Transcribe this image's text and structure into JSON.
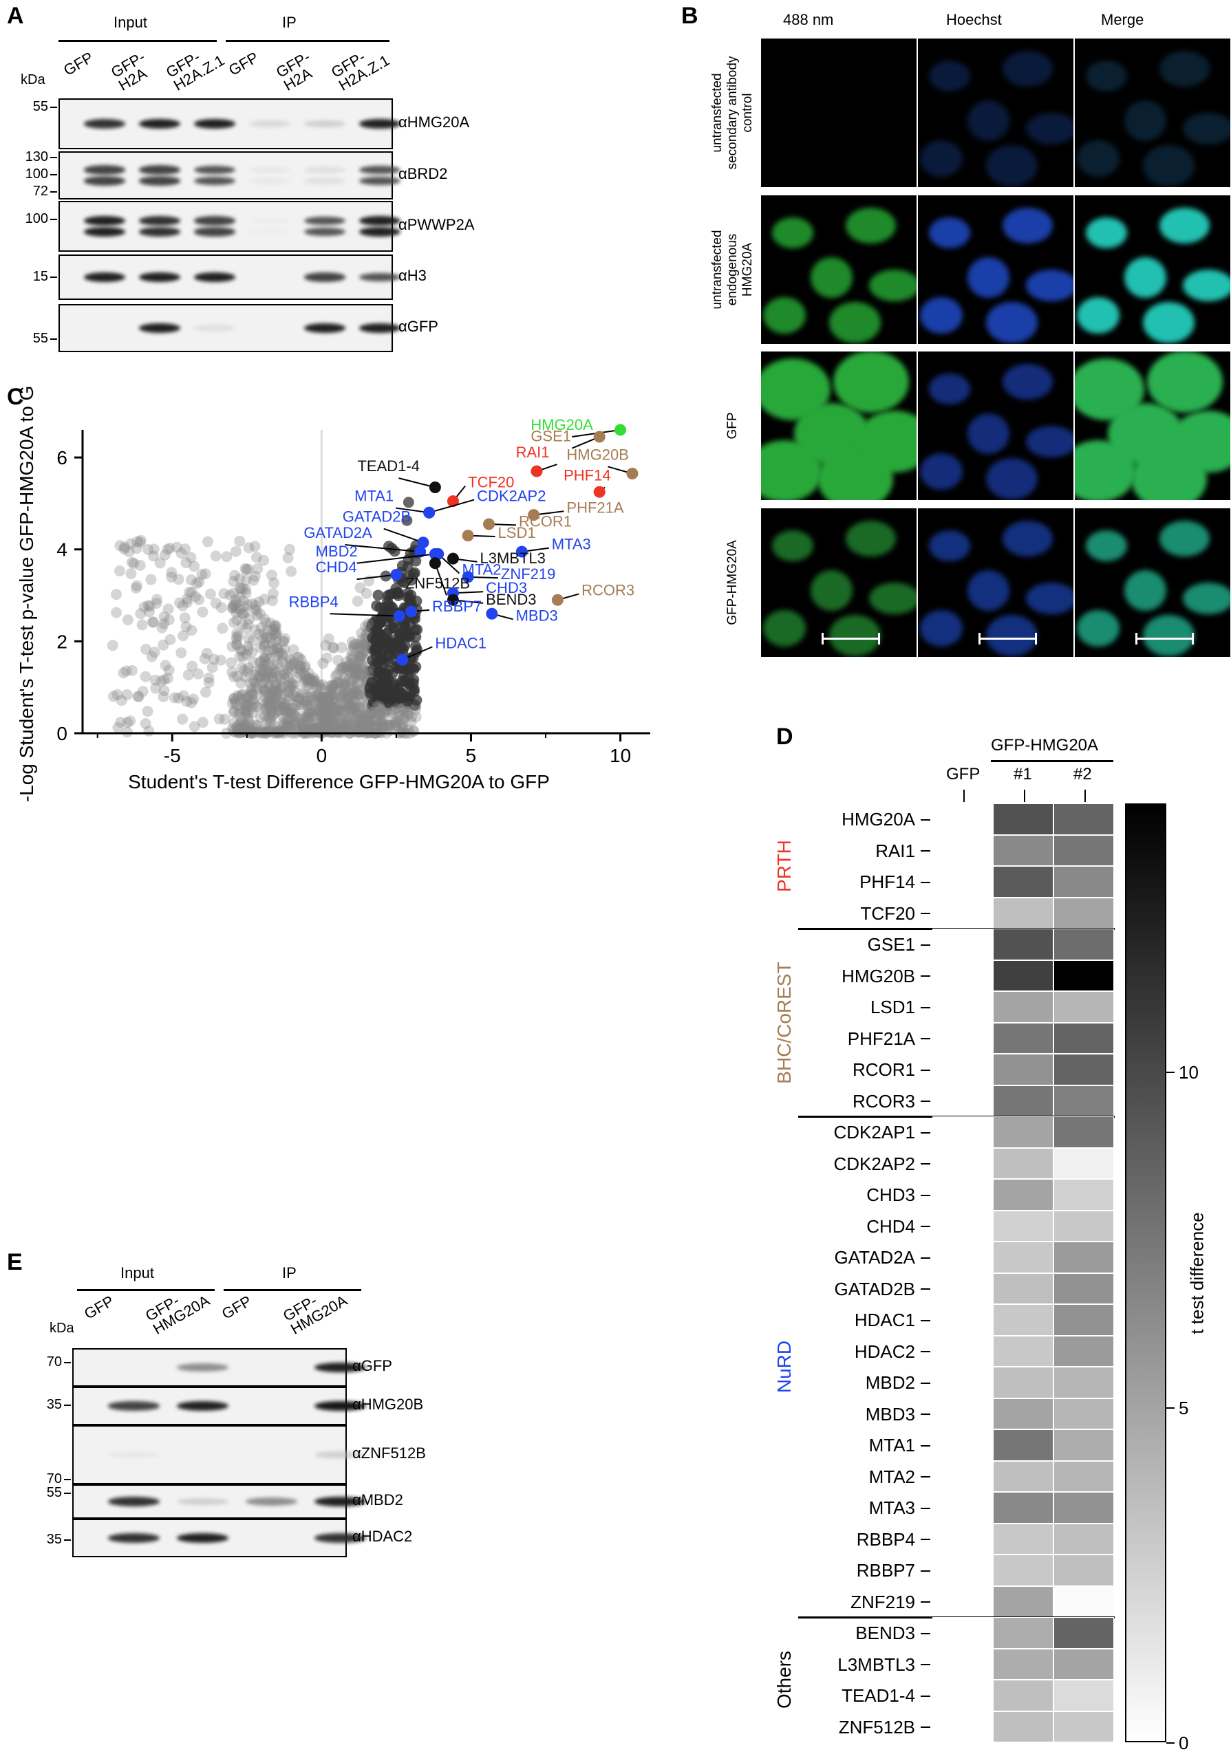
{
  "panelA": {
    "letter": "A",
    "kda": "kDa",
    "input": "Input",
    "ip": "IP",
    "lanes": [
      "GFP",
      "GFP-\nH2A",
      "GFP-\nH2A.Z.1",
      "GFP",
      "GFP-\nH2A",
      "GFP-\nH2A.Z.1"
    ],
    "blots": [
      {
        "label": "αHMG20A",
        "mw": [
          "55"
        ],
        "bands": [
          0.9,
          0.95,
          0.95,
          0.25,
          0.3,
          0.95
        ]
      },
      {
        "label": "αBRD2",
        "mw": [
          "130",
          "100",
          "72"
        ],
        "bands": [
          0.85,
          0.85,
          0.8,
          0.15,
          0.2,
          0.8
        ]
      },
      {
        "label": "αPWWP2A",
        "mw": [
          "100"
        ],
        "bands": [
          0.95,
          0.9,
          0.85,
          0.1,
          0.8,
          0.95
        ]
      },
      {
        "label": "αH3",
        "mw": [
          "15"
        ],
        "bands": [
          0.95,
          0.95,
          0.95,
          0.0,
          0.85,
          0.8
        ]
      },
      {
        "label": "αGFP",
        "mw": [
          "55"
        ],
        "bands": [
          0.0,
          0.95,
          0.2,
          0.0,
          0.95,
          0.95
        ]
      }
    ]
  },
  "panelB": {
    "letter": "B",
    "columns": [
      "488 nm",
      "Hoechst",
      "Merge"
    ],
    "rows": [
      "untransfected\nsecondary antibody\ncontrol",
      "untransfected\nendogenous\nHMG20A",
      "GFP",
      "GFP-HMG20A"
    ]
  },
  "panelC": {
    "letter": "C",
    "chart_data": {
      "type": "scatter",
      "xlabel": "Student's T-test Difference GFP-HMG20A to GFP",
      "ylabel": "-Log Student's T-test p-value GFP-HMG20A to GFP",
      "xlim": [
        -8,
        11
      ],
      "ylim": [
        0,
        6.6
      ],
      "xticks": [
        "-5",
        "0",
        "5",
        "10"
      ],
      "yticks": [
        "0",
        "2",
        "4",
        "6"
      ],
      "highlighted": [
        {
          "label": "HMG20A",
          "x": 10.0,
          "y": 6.6,
          "color": "#33dd33",
          "lx": 7.0,
          "ly": 6.6
        },
        {
          "label": "GSE1",
          "x": 9.3,
          "y": 6.45,
          "color": "#a67c52",
          "lx": 7.0,
          "ly": 6.35
        },
        {
          "label": "RAI1",
          "x": 7.2,
          "y": 5.7,
          "color": "#ee3322",
          "lx": 6.5,
          "ly": 6.0
        },
        {
          "label": "HMG20B",
          "x": 10.4,
          "y": 5.65,
          "color": "#a67c52",
          "lx": 8.2,
          "ly": 5.95
        },
        {
          "label": "TEAD1-4",
          "x": 3.8,
          "y": 5.35,
          "color": "#111111",
          "lx": 1.2,
          "ly": 5.7
        },
        {
          "label": "TCF20",
          "x": 4.4,
          "y": 5.05,
          "color": "#ee3322",
          "lx": 4.9,
          "ly": 5.35
        },
        {
          "label": "PHF14",
          "x": 9.3,
          "y": 5.25,
          "color": "#ee3322",
          "lx": 8.1,
          "ly": 5.5
        },
        {
          "label": "MTA1",
          "x": 3.6,
          "y": 4.8,
          "color": "#2244ee",
          "lx": 1.1,
          "ly": 5.05
        },
        {
          "label": "CDK2AP2",
          "x": 3.6,
          "y": 4.8,
          "color": "#2244ee",
          "lx": 5.2,
          "ly": 5.05
        },
        {
          "label": "PHF21A",
          "x": 7.1,
          "y": 4.75,
          "color": "#a67c52",
          "lx": 8.2,
          "ly": 4.8
        },
        {
          "label": "GATAD2B",
          "x": 3.4,
          "y": 4.15,
          "color": "#2244ee",
          "lx": 0.7,
          "ly": 4.6
        },
        {
          "label": "RCOR1",
          "x": 5.6,
          "y": 4.55,
          "color": "#a67c52",
          "lx": 6.6,
          "ly": 4.5
        },
        {
          "label": "LSD1",
          "x": 4.9,
          "y": 4.3,
          "color": "#a67c52",
          "lx": 5.9,
          "ly": 4.25
        },
        {
          "label": "GATAD2A",
          "x": 3.3,
          "y": 3.95,
          "color": "#2244ee",
          "lx": -0.6,
          "ly": 4.25
        },
        {
          "label": "MTA3",
          "x": 6.7,
          "y": 3.95,
          "color": "#2244ee",
          "lx": 7.7,
          "ly": 4.0
        },
        {
          "label": "MBD2",
          "x": 3.8,
          "y": 3.9,
          "color": "#2244ee",
          "lx": -0.2,
          "ly": 3.85
        },
        {
          "label": "L3MBTL3",
          "x": 4.4,
          "y": 3.8,
          "color": "#111111",
          "lx": 5.3,
          "ly": 3.7
        },
        {
          "label": "MTA2",
          "x": 3.9,
          "y": 3.9,
          "color": "#2244ee",
          "lx": 4.7,
          "ly": 3.45
        },
        {
          "label": "CHD4",
          "x": 2.5,
          "y": 3.45,
          "color": "#2244ee",
          "lx": -0.2,
          "ly": 3.5
        },
        {
          "label": "ZNF219",
          "x": 4.9,
          "y": 3.4,
          "color": "#2244ee",
          "lx": 6.0,
          "ly": 3.35
        },
        {
          "label": "ZNF512B",
          "x": 3.8,
          "y": 3.7,
          "color": "#111111",
          "lx": 2.8,
          "ly": 3.15
        },
        {
          "label": "CHD3",
          "x": 4.4,
          "y": 3.05,
          "color": "#2244ee",
          "lx": 5.5,
          "ly": 3.05
        },
        {
          "label": "RCOR3",
          "x": 7.9,
          "y": 2.9,
          "color": "#a67c52",
          "lx": 8.7,
          "ly": 3.0
        },
        {
          "label": "BEND3",
          "x": 4.4,
          "y": 2.9,
          "color": "#111111",
          "lx": 5.5,
          "ly": 2.8
        },
        {
          "label": "RBBP4",
          "x": 2.6,
          "y": 2.55,
          "color": "#2244ee",
          "lx": -1.1,
          "ly": 2.75
        },
        {
          "label": "RBBP7",
          "x": 3.0,
          "y": 2.65,
          "color": "#2244ee",
          "lx": 3.7,
          "ly": 2.65
        },
        {
          "label": "MBD3",
          "x": 5.7,
          "y": 2.6,
          "color": "#2244ee",
          "lx": 6.5,
          "ly": 2.45
        },
        {
          "label": "HDAC1",
          "x": 2.7,
          "y": 1.6,
          "color": "#2244ee",
          "lx": 3.8,
          "ly": 1.85
        }
      ]
    }
  },
  "panelD": {
    "letter": "D",
    "gfp": "GFP",
    "group": "GFP-HMG20A",
    "rep1": "#1",
    "rep2": "#2",
    "colorbar_label": "t test difference",
    "colorbar_ticks": [
      "0",
      "5",
      "10"
    ],
    "chart_data": {
      "type": "heatmap",
      "columns": [
        "GFP",
        "#1",
        "#2"
      ],
      "scale": [
        0,
        14
      ],
      "groups": [
        {
          "name": "PRTH",
          "color": "#ee3322",
          "rows": [
            {
              "name": "HMG20A",
              "values": [
                0,
                9.5,
                8.5
              ]
            },
            {
              "name": "RAI1",
              "values": [
                0,
                6.5,
                7.5
              ]
            },
            {
              "name": "PHF14",
              "values": [
                0,
                9.0,
                6.5
              ]
            },
            {
              "name": "TCF20",
              "values": [
                0,
                3.5,
                5.0
              ]
            }
          ]
        },
        {
          "name": "BHC/CoREST",
          "color": "#a67c52",
          "rows": [
            {
              "name": "GSE1",
              "values": [
                0,
                9.5,
                8.0
              ]
            },
            {
              "name": "HMG20B",
              "values": [
                0,
                10.5,
                14.0
              ]
            },
            {
              "name": "LSD1",
              "values": [
                0,
                5.0,
                4.0
              ]
            },
            {
              "name": "PHF21A",
              "values": [
                0,
                7.5,
                8.5
              ]
            },
            {
              "name": "RCOR1",
              "values": [
                0,
                6.0,
                8.5
              ]
            },
            {
              "name": "RCOR3",
              "values": [
                0,
                7.5,
                7.0
              ]
            }
          ]
        },
        {
          "name": "NuRD",
          "color": "#2244ee",
          "rows": [
            {
              "name": "CDK2AP1",
              "values": [
                0,
                5.0,
                7.5
              ]
            },
            {
              "name": "CDK2AP2",
              "values": [
                0,
                3.5,
                0.8
              ]
            },
            {
              "name": "CHD3",
              "values": [
                0,
                5.0,
                2.5
              ]
            },
            {
              "name": "CHD4",
              "values": [
                0,
                2.5,
                3.0
              ]
            },
            {
              "name": "GATAD2A",
              "values": [
                0,
                3.0,
                5.5
              ]
            },
            {
              "name": "GATAD2B",
              "values": [
                0,
                3.5,
                6.0
              ]
            },
            {
              "name": "HDAC1",
              "values": [
                0,
                3.0,
                6.0
              ]
            },
            {
              "name": "HDAC2",
              "values": [
                0,
                3.0,
                5.5
              ]
            },
            {
              "name": "MBD2",
              "values": [
                0,
                3.5,
                4.0
              ]
            },
            {
              "name": "MBD3",
              "values": [
                0,
                5.0,
                4.0
              ]
            },
            {
              "name": "MTA1",
              "values": [
                0,
                7.5,
                4.5
              ]
            },
            {
              "name": "MTA2",
              "values": [
                0,
                3.5,
                4.0
              ]
            },
            {
              "name": "MTA3",
              "values": [
                0,
                6.5,
                6.0
              ]
            },
            {
              "name": "RBBP4",
              "values": [
                0,
                3.0,
                3.5
              ]
            },
            {
              "name": "RBBP7",
              "values": [
                0,
                3.0,
                3.5
              ]
            },
            {
              "name": "ZNF219",
              "values": [
                0,
                5.0,
                0.2
              ]
            }
          ]
        },
        {
          "name": "Others",
          "color": "#000000",
          "rows": [
            {
              "name": "BEND3",
              "values": [
                0,
                4.5,
                8.5
              ]
            },
            {
              "name": "L3MBTL3",
              "values": [
                0,
                4.5,
                5.0
              ]
            },
            {
              "name": "TEAD1-4",
              "values": [
                0,
                3.5,
                2.0
              ]
            },
            {
              "name": "ZNF512B",
              "values": [
                0,
                3.5,
                3.0
              ]
            }
          ]
        }
      ]
    }
  },
  "panelE": {
    "letter": "E",
    "kda": "kDa",
    "input": "Input",
    "ip": "IP",
    "lanes": [
      "GFP",
      "GFP-\nHMG20A",
      "GFP",
      "GFP-\nHMG20A"
    ],
    "blots": [
      {
        "label": "αGFP",
        "mw": [
          "70"
        ],
        "bands": [
          0.0,
          0.6,
          0.0,
          0.95
        ]
      },
      {
        "label": "αHMG20B",
        "mw": [
          "35"
        ],
        "bands": [
          0.85,
          0.95,
          0.0,
          0.98
        ]
      },
      {
        "label": "αZNF512B",
        "mw": [
          "70"
        ],
        "bands": [
          0.15,
          0.05,
          0.0,
          0.3
        ]
      },
      {
        "label": "αMBD2",
        "mw": [
          "55"
        ],
        "bands": [
          0.9,
          0.3,
          0.6,
          0.95
        ]
      },
      {
        "label": "αHDAC2",
        "mw": [
          "35"
        ],
        "bands": [
          0.9,
          0.95,
          0.0,
          0.9
        ]
      }
    ]
  }
}
